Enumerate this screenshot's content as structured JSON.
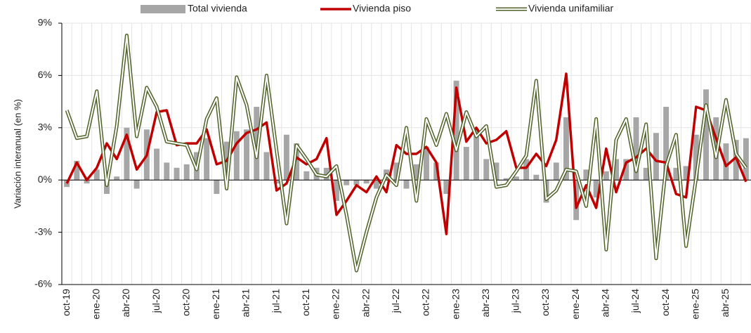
{
  "chart_data": {
    "type": "bar-line",
    "y_label": "Variación interanual (en %)",
    "categories": [
      "oct-19",
      null,
      null,
      "ene-20",
      null,
      null,
      "abr-20",
      null,
      null,
      "jul-20",
      null,
      null,
      "oct-20",
      null,
      null,
      "ene-21",
      null,
      null,
      "abr-21",
      null,
      null,
      "jul-21",
      null,
      null,
      "oct-21",
      null,
      null,
      "ene-22",
      null,
      null,
      "abr-22",
      null,
      null,
      "jul-22",
      null,
      null,
      "oct-22",
      null,
      null,
      "ene-23",
      null,
      null,
      "abr-23",
      null,
      null,
      "jul-23",
      null,
      null,
      "oct-23",
      null,
      null,
      "ene-24",
      null,
      null,
      "abr-24",
      null,
      null,
      "jul-24",
      null,
      null,
      "oct-24",
      null,
      null,
      "ene-25",
      null,
      null,
      "abr-25",
      null,
      null
    ],
    "series": [
      {
        "name": "Total vivienda",
        "kind": "bar",
        "color": "#a6a6a6",
        "values": [
          -0.4,
          1.1,
          -0.2,
          0.6,
          -0.8,
          0.2,
          3.0,
          -0.5,
          2.9,
          1.8,
          1.0,
          0.7,
          0.9,
          1.6,
          2.4,
          -0.8,
          2.2,
          2.8,
          2.9,
          4.2,
          1.6,
          -0.2,
          2.6,
          2.1,
          0.5,
          0.7,
          0.7,
          -1.2,
          -0.3,
          -0.3,
          -0.2,
          -0.5,
          0.6,
          1.0,
          -0.5,
          0.9,
          1.9,
          1.0,
          -0.8,
          5.7,
          1.9,
          2.9,
          1.2,
          1.0,
          0.1,
          0.2,
          1.2,
          0.3,
          -1.3,
          1.0,
          3.6,
          -2.3,
          0.6,
          -1.0,
          0.5,
          1.2,
          1.2,
          3.6,
          0.7,
          2.7,
          4.2,
          0.7,
          0.8,
          2.6,
          5.2,
          3.6,
          2.1,
          2.3,
          2.4
        ]
      },
      {
        "name": "Vivienda piso",
        "kind": "line",
        "color": "#c00000",
        "values": [
          -0.2,
          1.0,
          0.0,
          0.7,
          2.1,
          1.2,
          2.6,
          0.6,
          1.4,
          3.9,
          4.0,
          2.0,
          2.1,
          2.1,
          2.9,
          0.9,
          1.1,
          2.1,
          2.7,
          2.9,
          3.3,
          -0.6,
          -0.2,
          1.3,
          0.9,
          1.2,
          2.4,
          -2.0,
          -1.2,
          -0.3,
          -0.7,
          0.2,
          -0.7,
          2.0,
          1.5,
          1.5,
          1.9,
          1.0,
          -3.1,
          5.3,
          2.2,
          3.0,
          2.1,
          2.3,
          2.8,
          0.7,
          0.7,
          1.5,
          0.8,
          2.3,
          6.1,
          -1.6,
          -0.3,
          -1.6,
          1.8,
          -0.7,
          1.0,
          1.3,
          1.8,
          1.1,
          1.0,
          -0.8,
          -1.0,
          4.2,
          4.0,
          2.4,
          0.8,
          1.3,
          -0.1
        ]
      },
      {
        "name": "Vivienda unifamiliar",
        "kind": "double-line",
        "color": "#4f6228",
        "values": [
          4.0,
          2.4,
          2.5,
          5.1,
          -0.3,
          3.1,
          8.3,
          2.5,
          5.3,
          4.2,
          2.2,
          2.1,
          2.0,
          0.6,
          3.5,
          4.7,
          -0.5,
          5.9,
          4.3,
          1.3,
          6.0,
          1.7,
          -2.5,
          2.0,
          1.2,
          0.3,
          0.2,
          0.8,
          -2.0,
          -5.2,
          -3.0,
          -1.0,
          0.3,
          -0.3,
          3.0,
          -1.2,
          3.5,
          2.0,
          3.8,
          1.7,
          3.9,
          2.5,
          3.1,
          -0.4,
          -0.3,
          0.5,
          1.4,
          5.7,
          -1.1,
          -0.6,
          0.6,
          0.5,
          -1.5,
          3.5,
          -4.0,
          2.3,
          3.5,
          0.5,
          3.2,
          -4.5,
          0.8,
          2.6,
          -3.8,
          0.1,
          4.3,
          1.3,
          4.6,
          1.5,
          0.7
        ]
      }
    ],
    "ylim": [
      -6,
      9
    ],
    "yticks": [
      {
        "value": -6,
        "label": "-6%"
      },
      {
        "value": -3,
        "label": "-3%"
      },
      {
        "value": 0,
        "label": "0%"
      },
      {
        "value": 3,
        "label": "3%"
      },
      {
        "value": 6,
        "label": "6%"
      },
      {
        "value": 9,
        "label": "9%"
      }
    ],
    "grid": true,
    "legend": "top"
  }
}
